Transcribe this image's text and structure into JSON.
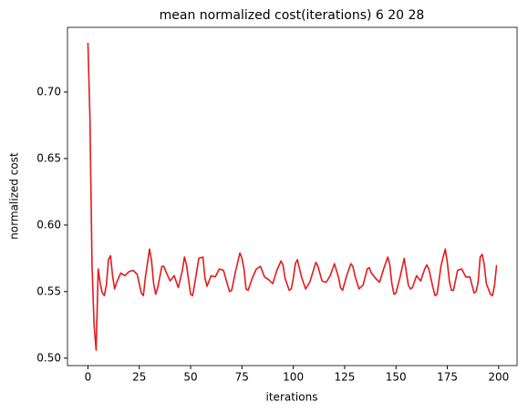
{
  "chart_data": {
    "type": "line",
    "title": "mean normalized cost(iterations) 6 20 28",
    "xlabel": "iterations",
    "ylabel": "normalized cost",
    "x": [
      0,
      1,
      2,
      3,
      4,
      5,
      6,
      7,
      8,
      9,
      10,
      11,
      12,
      13,
      14,
      16,
      18,
      20,
      22,
      24,
      26,
      27,
      28,
      30,
      31,
      32,
      33,
      34,
      36,
      37,
      38,
      40,
      42,
      44,
      46,
      47,
      48,
      50,
      51,
      52,
      54,
      56,
      57,
      58,
      60,
      62,
      64,
      66,
      68,
      69,
      70,
      72,
      74,
      75,
      76,
      77,
      78,
      80,
      82,
      84,
      86,
      88,
      90,
      92,
      94,
      95,
      96,
      98,
      99,
      100,
      101,
      102,
      104,
      106,
      108,
      110,
      111,
      112,
      114,
      116,
      118,
      120,
      122,
      123,
      124,
      126,
      128,
      129,
      130,
      132,
      134,
      136,
      137,
      138,
      140,
      142,
      144,
      146,
      147,
      148,
      149,
      150,
      152,
      154,
      156,
      157,
      158,
      160,
      162,
      164,
      165,
      166,
      168,
      169,
      170,
      172,
      174,
      175,
      176,
      177,
      178,
      180,
      182,
      184,
      186,
      188,
      189,
      190,
      191,
      192,
      193,
      194,
      196,
      197,
      198,
      199
    ],
    "series": [
      {
        "name": "mean normalized cost",
        "color": "#e31a1c",
        "values": [
          0.737,
          0.68,
          0.57,
          0.525,
          0.506,
          0.567,
          0.556,
          0.549,
          0.547,
          0.555,
          0.574,
          0.577,
          0.562,
          0.552,
          0.557,
          0.564,
          0.562,
          0.565,
          0.566,
          0.563,
          0.549,
          0.547,
          0.561,
          0.582,
          0.573,
          0.556,
          0.548,
          0.553,
          0.569,
          0.569,
          0.565,
          0.558,
          0.562,
          0.553,
          0.566,
          0.576,
          0.57,
          0.548,
          0.547,
          0.556,
          0.575,
          0.576,
          0.56,
          0.554,
          0.562,
          0.561,
          0.567,
          0.566,
          0.555,
          0.55,
          0.551,
          0.566,
          0.579,
          0.575,
          0.567,
          0.552,
          0.551,
          0.56,
          0.567,
          0.569,
          0.561,
          0.559,
          0.556,
          0.566,
          0.573,
          0.57,
          0.56,
          0.551,
          0.552,
          0.56,
          0.571,
          0.574,
          0.561,
          0.552,
          0.557,
          0.567,
          0.572,
          0.569,
          0.558,
          0.557,
          0.562,
          0.571,
          0.561,
          0.553,
          0.551,
          0.562,
          0.571,
          0.569,
          0.562,
          0.552,
          0.555,
          0.567,
          0.568,
          0.564,
          0.56,
          0.557,
          0.567,
          0.576,
          0.57,
          0.556,
          0.548,
          0.549,
          0.561,
          0.575,
          0.555,
          0.552,
          0.553,
          0.562,
          0.558,
          0.567,
          0.57,
          0.567,
          0.553,
          0.547,
          0.548,
          0.57,
          0.582,
          0.572,
          0.558,
          0.551,
          0.551,
          0.566,
          0.567,
          0.561,
          0.561,
          0.549,
          0.55,
          0.557,
          0.576,
          0.578,
          0.57,
          0.556,
          0.548,
          0.547,
          0.555,
          0.57
        ]
      }
    ],
    "xlim": [
      -9.95,
      208.95
    ],
    "xticks": [
      0,
      25,
      50,
      75,
      100,
      125,
      150,
      175,
      200
    ],
    "ylim": [
      0.4944,
      0.7486
    ],
    "yticks": [
      {
        "value": 0.5,
        "label": "0.50"
      },
      0.55,
      {
        "value": 0.6,
        "label": "0.60"
      },
      0.65,
      {
        "value": 0.7,
        "label": "0.70"
      }
    ],
    "grid": false
  }
}
